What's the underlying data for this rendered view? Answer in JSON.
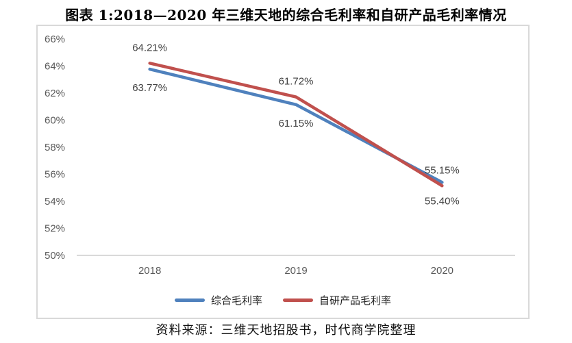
{
  "title": "图表 1:2018—2020 年三维天地的综合毛利率和自研产品毛利率情况",
  "source": "资料来源：三维天地招股书，时代商学院整理",
  "colors": {
    "series_blue": "#4F81BD",
    "series_red": "#C0504D",
    "frame_border": "#D9D9D9",
    "axis_line": "#D9D9D9",
    "tick_label": "#595959",
    "data_label": "#404040",
    "legend_text": "#222222"
  },
  "chart_data": {
    "type": "line",
    "title": "图表 1:2018—2020 年三维天地的综合毛利率和自研产品毛利率情况",
    "categories": [
      "2018",
      "2019",
      "2020"
    ],
    "series": [
      {
        "name": "综合毛利率",
        "color": "#4F81BD",
        "values": [
          63.77,
          61.15,
          55.4
        ],
        "labels": [
          "63.77%",
          "61.15%",
          "55.40%"
        ],
        "label_side": "below"
      },
      {
        "name": "自研产品毛利率",
        "color": "#C0504D",
        "values": [
          64.21,
          61.72,
          55.15
        ],
        "labels": [
          "64.21%",
          "61.72%",
          "55.15%"
        ],
        "label_side": "above"
      }
    ],
    "xlabel": "",
    "ylabel": "",
    "ylim": [
      50,
      66
    ],
    "y_step": 2,
    "y_tick_labels": [
      "66%",
      "64%",
      "62%",
      "60%",
      "58%",
      "56%",
      "54%",
      "52%",
      "50%"
    ],
    "grid": false,
    "legend_position": "bottom"
  }
}
